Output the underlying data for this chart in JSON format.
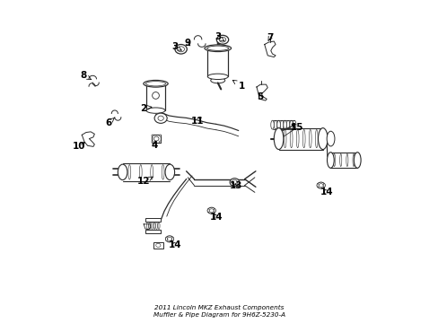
{
  "title": "2011 Lincoln MKZ Exhaust Components\nMuffler & Pipe Diagram for 9H6Z-5230-A",
  "bg_color": "#ffffff",
  "line_color": "#2a2a2a",
  "label_color": "#000000",
  "figsize": [
    4.89,
    3.6
  ],
  "dpi": 100,
  "labels": {
    "1": [
      0.57,
      0.735,
      0.54,
      0.755
    ],
    "2": [
      0.258,
      0.665,
      0.295,
      0.67
    ],
    "3a": [
      0.358,
      0.86,
      0.382,
      0.847
    ],
    "3b": [
      0.496,
      0.89,
      0.517,
      0.877
    ],
    "4": [
      0.295,
      0.548,
      0.305,
      0.565
    ],
    "5": [
      0.63,
      0.7,
      0.62,
      0.72
    ],
    "6": [
      0.148,
      0.618,
      0.168,
      0.635
    ],
    "7": [
      0.66,
      0.888,
      0.65,
      0.87
    ],
    "8": [
      0.068,
      0.77,
      0.095,
      0.755
    ],
    "9": [
      0.398,
      0.87,
      0.415,
      0.857
    ],
    "10": [
      0.055,
      0.545,
      0.082,
      0.562
    ],
    "11": [
      0.43,
      0.625,
      0.45,
      0.642
    ],
    "12": [
      0.26,
      0.432,
      0.29,
      0.448
    ],
    "13": [
      0.552,
      0.418,
      0.548,
      0.435
    ],
    "14a": [
      0.36,
      0.23,
      0.342,
      0.248
    ],
    "14b": [
      0.49,
      0.32,
      0.478,
      0.338
    ],
    "14c": [
      0.84,
      0.398,
      0.822,
      0.415
    ],
    "15": [
      0.745,
      0.605,
      0.72,
      0.618
    ]
  }
}
